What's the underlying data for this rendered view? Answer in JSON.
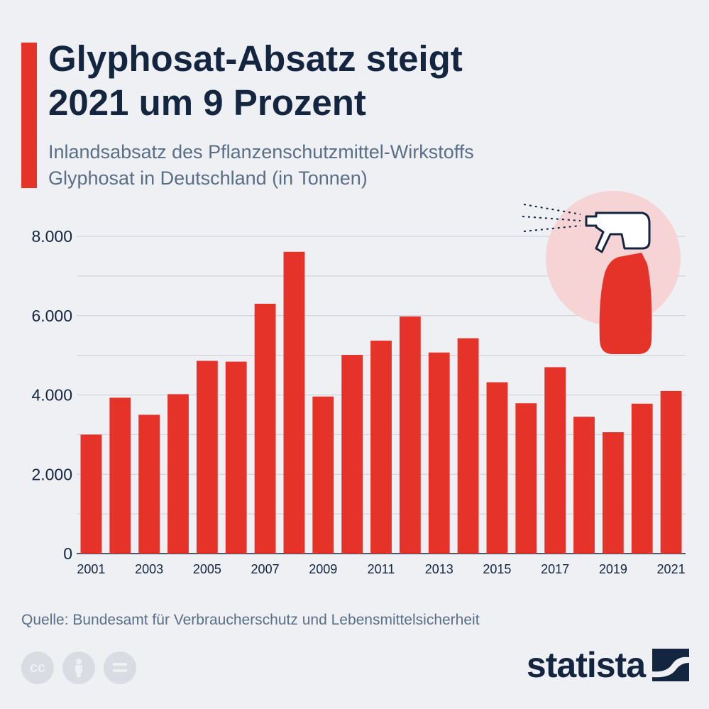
{
  "header": {
    "title_line1": "Glyphosat-Absatz steigt",
    "title_line2": "2021 um 9 Prozent",
    "subtitle_line1": "Inlandsabsatz des Pflanzenschutzmittel-Wirkstoffs",
    "subtitle_line2": "Glyphosat in Deutschland (in Tonnen)"
  },
  "colors": {
    "accent": "#e63329",
    "title": "#13253f",
    "text": "#5a6f86",
    "background": "#eef0f4",
    "grid": "#c9ced6",
    "illustration_circle": "#f6d3d4"
  },
  "chart_data": {
    "type": "bar",
    "categories": [
      "2001",
      "2002",
      "2003",
      "2004",
      "2005",
      "2006",
      "2007",
      "2008",
      "2009",
      "2010",
      "2011",
      "2012",
      "2013",
      "2014",
      "2015",
      "2016",
      "2017",
      "2018",
      "2019",
      "2020",
      "2021"
    ],
    "values": [
      3000,
      3930,
      3500,
      4020,
      4860,
      4840,
      6300,
      7610,
      3960,
      5010,
      5370,
      5980,
      5070,
      5430,
      4320,
      3790,
      4700,
      3450,
      3060,
      3780,
      4100
    ],
    "x_tick_labels": [
      "2001",
      "2003",
      "2005",
      "2007",
      "2009",
      "2011",
      "2013",
      "2015",
      "2017",
      "2019",
      "2021"
    ],
    "y_ticks": [
      0,
      2000,
      4000,
      6000,
      8000
    ],
    "y_tick_labels": [
      "0",
      "2.000",
      "4.000",
      "6.000",
      "8.000"
    ],
    "ylim": [
      0,
      8000
    ],
    "grid": true,
    "xlabel": "",
    "ylabel": ""
  },
  "footer": {
    "source": "Quelle: Bundesamt für Verbraucherschutz und Lebensmittelsicherheit",
    "brand": "statista",
    "license_icons": [
      "cc-icon",
      "attribution-icon",
      "no-derivatives-icon"
    ]
  }
}
